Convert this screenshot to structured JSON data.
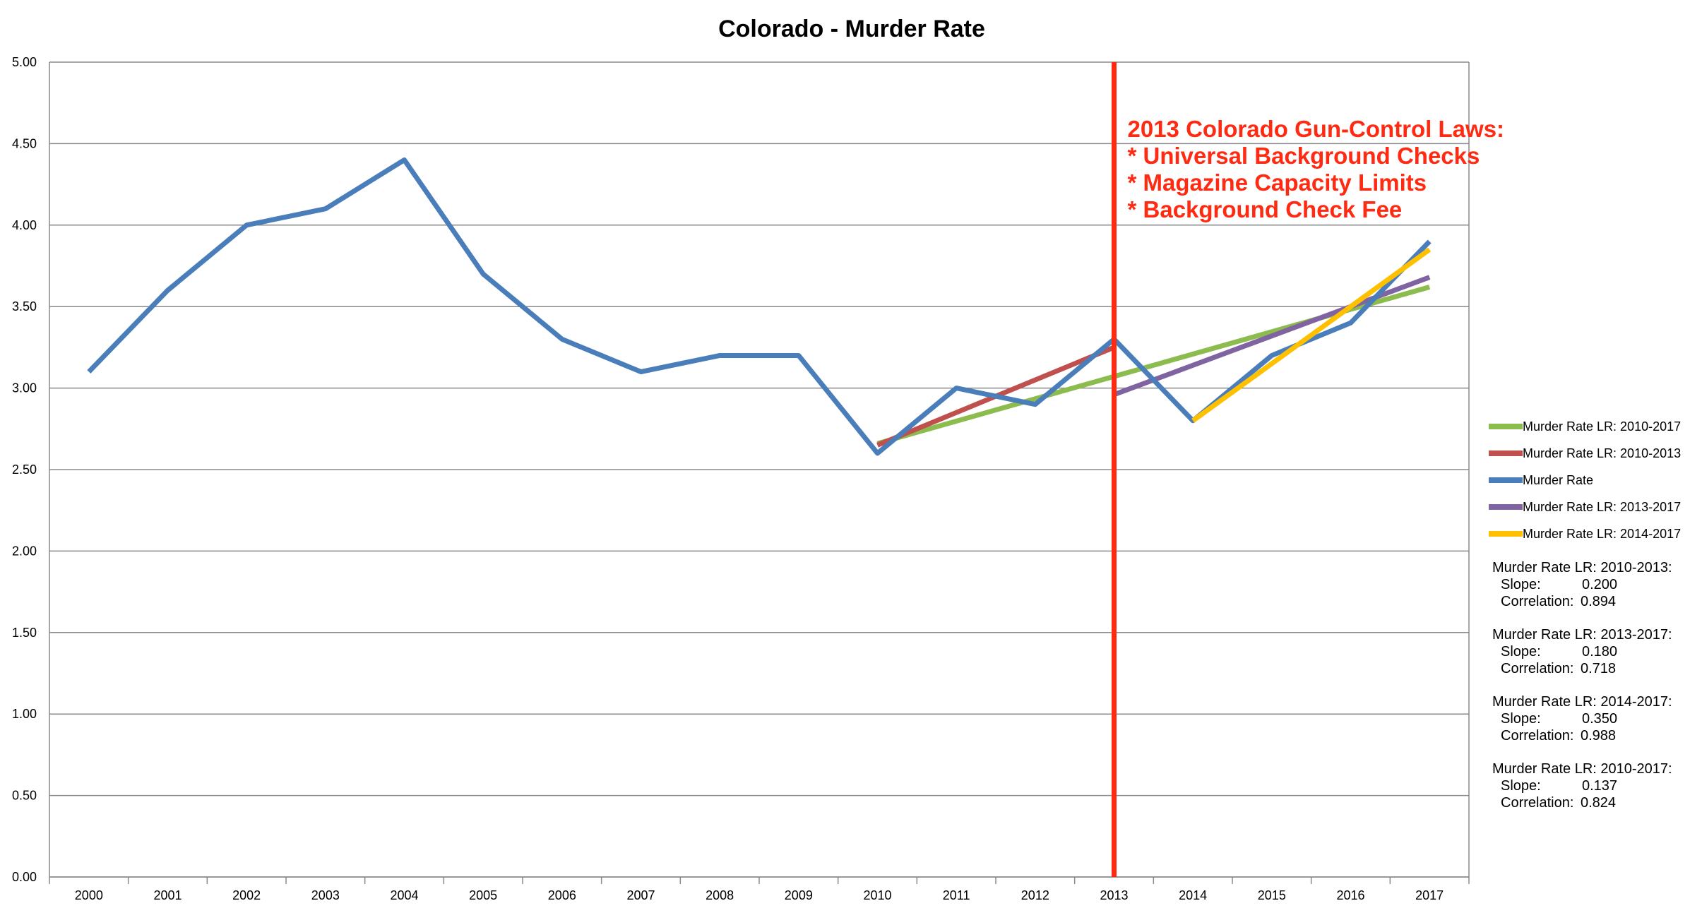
{
  "chart_data": {
    "type": "line",
    "title": "Colorado - Murder Rate",
    "xlabel": "",
    "ylabel": "",
    "categories": [
      "2000",
      "2001",
      "2002",
      "2003",
      "2004",
      "2005",
      "2006",
      "2007",
      "2008",
      "2009",
      "2010",
      "2011",
      "2012",
      "2013",
      "2014",
      "2015",
      "2016",
      "2017"
    ],
    "ylim": [
      0,
      5
    ],
    "yticks": [
      "0.00",
      "0.50",
      "1.00",
      "1.50",
      "2.00",
      "2.50",
      "3.00",
      "3.50",
      "4.00",
      "4.50",
      "5.00"
    ],
    "ytick_values": [
      0,
      0.5,
      1,
      1.5,
      2,
      2.5,
      3,
      3.5,
      4,
      4.5,
      5
    ],
    "grid": true,
    "legend_position": "right",
    "series": [
      {
        "name": "Murder Rate LR: 2010-2017",
        "color": "#8cbb4e",
        "x": [
          "2010",
          "2017"
        ],
        "values": [
          2.66,
          3.62
        ]
      },
      {
        "name": "Murder Rate LR: 2010-2013",
        "color": "#c0504d",
        "x": [
          "2010",
          "2013"
        ],
        "values": [
          2.65,
          3.25
        ]
      },
      {
        "name": "Murder Rate",
        "color": "#4a7ebb",
        "x": [
          "2000",
          "2001",
          "2002",
          "2003",
          "2004",
          "2005",
          "2006",
          "2007",
          "2008",
          "2009",
          "2010",
          "2011",
          "2012",
          "2013",
          "2014",
          "2015",
          "2016",
          "2017"
        ],
        "values": [
          3.1,
          3.6,
          4.0,
          4.1,
          4.4,
          3.7,
          3.3,
          3.1,
          3.2,
          3.2,
          2.6,
          3.0,
          2.9,
          3.3,
          2.8,
          3.2,
          3.4,
          3.9
        ]
      },
      {
        "name": "Murder Rate LR: 2013-2017",
        "color": "#8064a2",
        "x": [
          "2013",
          "2017"
        ],
        "values": [
          2.96,
          3.68
        ]
      },
      {
        "name": "Murder Rate LR: 2014-2017",
        "color": "#ffc000",
        "x": [
          "2014",
          "2017"
        ],
        "values": [
          2.8,
          3.85
        ]
      }
    ],
    "draw_order": [
      0,
      1,
      3,
      2,
      4
    ],
    "marker_line": {
      "x": "2013",
      "color": "#ff2a12"
    },
    "annotation": {
      "lines": [
        "2013 Colorado Gun-Control Laws:",
        "* Universal Background Checks",
        "* Magazine Capacity Limits",
        "* Background Check Fee"
      ],
      "color": "#ff2a12"
    },
    "stats": [
      {
        "header": "Murder Rate LR: 2010-2013:",
        "slope_label": "Slope:",
        "slope": "0.200",
        "corr_label": "Correlation:",
        "corr": "0.894"
      },
      {
        "header": "Murder Rate LR: 2013-2017:",
        "slope_label": "Slope:",
        "slope": "0.180",
        "corr_label": "Correlation:",
        "corr": "0.718"
      },
      {
        "header": "Murder Rate LR: 2014-2017:",
        "slope_label": "Slope:",
        "slope": "0.350",
        "corr_label": "Correlation:",
        "corr": "0.988"
      },
      {
        "header": "Murder Rate LR: 2010-2017:",
        "slope_label": "Slope:",
        "slope": "0.137",
        "corr_label": "Correlation:",
        "corr": "0.824"
      }
    ]
  }
}
